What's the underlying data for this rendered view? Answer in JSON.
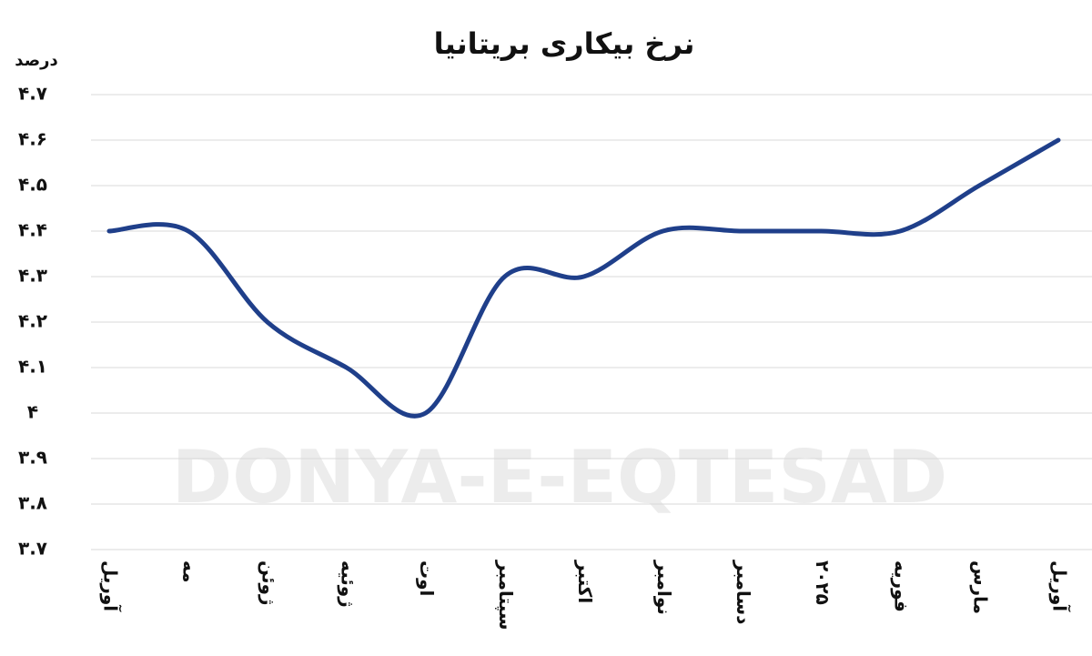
{
  "chart_data": {
    "type": "line",
    "title": "نرخ بیکاری بریتانیا",
    "y_label": "درصد",
    "watermark": "DONYA-E-EQTESAD",
    "categories": [
      "آوریل",
      "مه",
      "ژوئن",
      "ژوئیه",
      "اوت",
      "سپتامبر",
      "اکتبر",
      "نوامبر",
      "دسامبر",
      "۲۰۲۵",
      "فوریه",
      "مارس",
      "آوریل"
    ],
    "series": [
      {
        "name": "نرخ بیکاری",
        "color": "#1f3f8a",
        "values": [
          4.4,
          4.4,
          4.2,
          4.1,
          4.0,
          4.3,
          4.3,
          4.4,
          4.4,
          4.4,
          4.4,
          4.5,
          4.6
        ]
      }
    ],
    "ylim": [
      3.7,
      4.7
    ],
    "yticks": [
      {
        "value": 3.7,
        "label": "۳.۷"
      },
      {
        "value": 3.8,
        "label": "۳.۸"
      },
      {
        "value": 3.9,
        "label": "۳.۹"
      },
      {
        "value": 4.0,
        "label": "۴"
      },
      {
        "value": 4.1,
        "label": "۴.۱"
      },
      {
        "value": 4.2,
        "label": "۴.۲"
      },
      {
        "value": 4.3,
        "label": "۴.۳"
      },
      {
        "value": 4.4,
        "label": "۴.۴"
      },
      {
        "value": 4.5,
        "label": "۴.۵"
      },
      {
        "value": 4.6,
        "label": "۴.۶"
      },
      {
        "value": 4.7,
        "label": "۴.۷"
      }
    ],
    "grid": true
  }
}
